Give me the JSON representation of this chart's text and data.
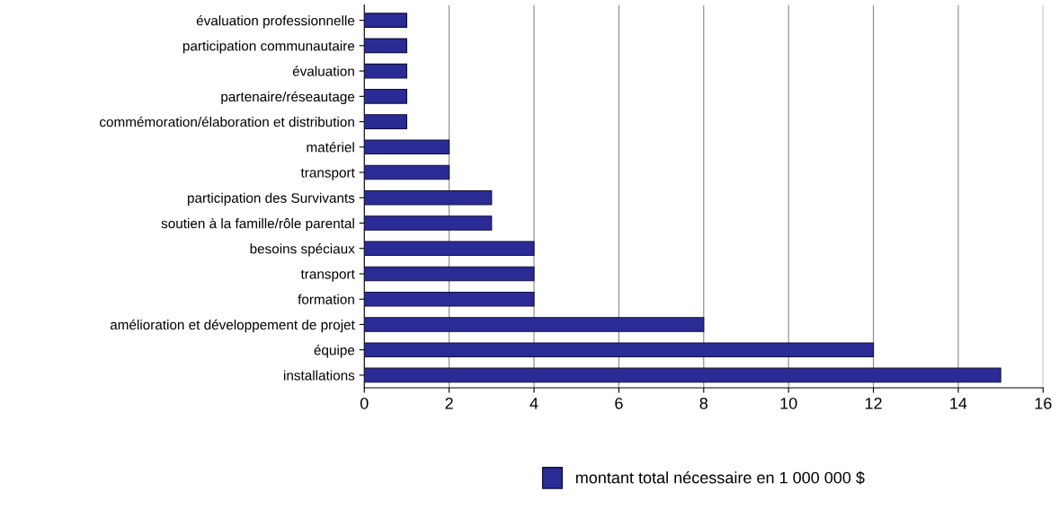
{
  "chart_data": {
    "type": "bar",
    "orientation": "horizontal",
    "categories": [
      "évaluation professionnelle",
      "participation communautaire",
      "évaluation",
      "partenaire/réseautage",
      "commémoration/élaboration et distribution",
      "matériel",
      "transport",
      "participation des Survivants",
      "soutien à la famille/rôle parental",
      "besoins spéciaux",
      "transport",
      "formation",
      "amélioration et développement de projet",
      "équipe",
      "installations"
    ],
    "series": [
      {
        "name": "montant total nécessaire en 1 000 000 $",
        "color": "#2b2b96",
        "values": [
          1,
          1,
          1,
          1,
          1,
          2,
          2,
          3,
          3,
          4,
          4,
          4,
          8,
          12,
          15
        ]
      }
    ],
    "xlim": [
      0,
      16
    ],
    "xticks": [
      0,
      2,
      4,
      6,
      8,
      10,
      12,
      14,
      16
    ],
    "grid": "x",
    "legend": "bottom"
  }
}
